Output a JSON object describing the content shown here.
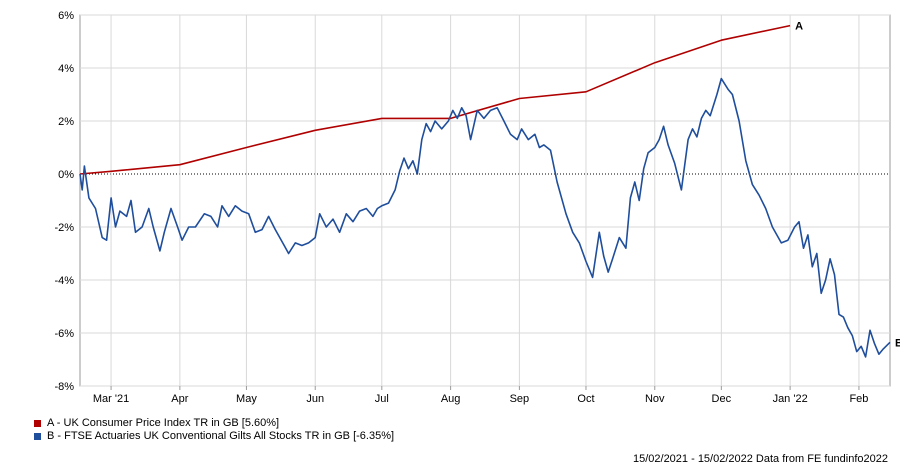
{
  "chart_data": {
    "type": "line",
    "y_ticks": [
      "6%",
      "4%",
      "2%",
      "0%",
      "-2%",
      "-4%",
      "-6%",
      "-8%"
    ],
    "ylim": [
      -8,
      6
    ],
    "x_ticks": [
      {
        "label": "Mar '21",
        "date": "2021-03-01"
      },
      {
        "label": "Apr",
        "date": "2021-04-01"
      },
      {
        "label": "May",
        "date": "2021-05-01"
      },
      {
        "label": "Jun",
        "date": "2021-06-01"
      },
      {
        "label": "Jul",
        "date": "2021-07-01"
      },
      {
        "label": "Aug",
        "date": "2021-08-01"
      },
      {
        "label": "Sep",
        "date": "2021-09-01"
      },
      {
        "label": "Oct",
        "date": "2021-10-01"
      },
      {
        "label": "Nov",
        "date": "2021-11-01"
      },
      {
        "label": "Dec",
        "date": "2021-12-01"
      },
      {
        "label": "Jan '22",
        "date": "2022-01-01"
      },
      {
        "label": "Feb",
        "date": "2022-02-01"
      }
    ],
    "xlim": [
      "2021-02-15",
      "2022-02-15"
    ],
    "grid": true,
    "zero_line": "dotted",
    "series": [
      {
        "name": "A - UK Consumer Price Index TR in GB [5.60%]",
        "end_label": "A",
        "color": "#b00000",
        "points": [
          [
            "2021-02-15",
            0.0
          ],
          [
            "2021-03-01",
            0.1
          ],
          [
            "2021-04-01",
            0.35
          ],
          [
            "2021-05-01",
            1.0
          ],
          [
            "2021-06-01",
            1.65
          ],
          [
            "2021-07-01",
            2.1
          ],
          [
            "2021-08-01",
            2.1
          ],
          [
            "2021-09-01",
            2.85
          ],
          [
            "2021-10-01",
            3.1
          ],
          [
            "2021-11-01",
            4.2
          ],
          [
            "2021-12-01",
            5.05
          ],
          [
            "2022-01-01",
            5.6
          ]
        ]
      },
      {
        "name": "B - FTSE Actuaries UK Conventional Gilts All Stocks TR in GB [-6.35%]",
        "end_label": "B",
        "color": "#1f4e9c",
        "points": [
          [
            "2021-02-15",
            0.0
          ],
          [
            "2021-02-16",
            -0.6
          ],
          [
            "2021-02-17",
            0.3
          ],
          [
            "2021-02-19",
            -0.9
          ],
          [
            "2021-02-22",
            -1.3
          ],
          [
            "2021-02-25",
            -2.4
          ],
          [
            "2021-02-27",
            -2.5
          ],
          [
            "2021-03-01",
            -0.9
          ],
          [
            "2021-03-03",
            -2.0
          ],
          [
            "2021-03-05",
            -1.4
          ],
          [
            "2021-03-08",
            -1.6
          ],
          [
            "2021-03-10",
            -1.0
          ],
          [
            "2021-03-12",
            -2.2
          ],
          [
            "2021-03-15",
            -2.0
          ],
          [
            "2021-03-18",
            -1.3
          ],
          [
            "2021-03-20",
            -2.0
          ],
          [
            "2021-03-23",
            -2.9
          ],
          [
            "2021-03-25",
            -2.2
          ],
          [
            "2021-03-28",
            -1.3
          ],
          [
            "2021-03-31",
            -2.0
          ],
          [
            "2021-04-02",
            -2.5
          ],
          [
            "2021-04-05",
            -2.0
          ],
          [
            "2021-04-08",
            -2.0
          ],
          [
            "2021-04-12",
            -1.5
          ],
          [
            "2021-04-15",
            -1.6
          ],
          [
            "2021-04-18",
            -2.0
          ],
          [
            "2021-04-20",
            -1.2
          ],
          [
            "2021-04-23",
            -1.6
          ],
          [
            "2021-04-26",
            -1.2
          ],
          [
            "2021-04-29",
            -1.4
          ],
          [
            "2021-05-02",
            -1.5
          ],
          [
            "2021-05-05",
            -2.2
          ],
          [
            "2021-05-08",
            -2.1
          ],
          [
            "2021-05-11",
            -1.6
          ],
          [
            "2021-05-14",
            -2.1
          ],
          [
            "2021-05-18",
            -2.7
          ],
          [
            "2021-05-20",
            -3.0
          ],
          [
            "2021-05-23",
            -2.6
          ],
          [
            "2021-05-26",
            -2.7
          ],
          [
            "2021-05-29",
            -2.6
          ],
          [
            "2021-06-01",
            -2.4
          ],
          [
            "2021-06-03",
            -1.5
          ],
          [
            "2021-06-06",
            -2.0
          ],
          [
            "2021-06-09",
            -1.7
          ],
          [
            "2021-06-12",
            -2.2
          ],
          [
            "2021-06-15",
            -1.5
          ],
          [
            "2021-06-18",
            -1.8
          ],
          [
            "2021-06-21",
            -1.4
          ],
          [
            "2021-06-24",
            -1.3
          ],
          [
            "2021-06-27",
            -1.6
          ],
          [
            "2021-06-29",
            -1.3
          ],
          [
            "2021-07-01",
            -1.2
          ],
          [
            "2021-07-04",
            -1.1
          ],
          [
            "2021-07-07",
            -0.6
          ],
          [
            "2021-07-09",
            0.1
          ],
          [
            "2021-07-11",
            0.6
          ],
          [
            "2021-07-13",
            0.2
          ],
          [
            "2021-07-15",
            0.5
          ],
          [
            "2021-07-17",
            0.0
          ],
          [
            "2021-07-19",
            1.3
          ],
          [
            "2021-07-21",
            1.9
          ],
          [
            "2021-07-23",
            1.6
          ],
          [
            "2021-07-25",
            2.0
          ],
          [
            "2021-07-28",
            1.7
          ],
          [
            "2021-07-31",
            2.0
          ],
          [
            "2021-08-02",
            2.4
          ],
          [
            "2021-08-04",
            2.1
          ],
          [
            "2021-08-06",
            2.5
          ],
          [
            "2021-08-08",
            2.2
          ],
          [
            "2021-08-10",
            1.3
          ],
          [
            "2021-08-13",
            2.4
          ],
          [
            "2021-08-16",
            2.1
          ],
          [
            "2021-08-19",
            2.4
          ],
          [
            "2021-08-22",
            2.5
          ],
          [
            "2021-08-25",
            2.0
          ],
          [
            "2021-08-28",
            1.5
          ],
          [
            "2021-08-31",
            1.3
          ],
          [
            "2021-09-02",
            1.7
          ],
          [
            "2021-09-05",
            1.3
          ],
          [
            "2021-09-08",
            1.5
          ],
          [
            "2021-09-10",
            1.0
          ],
          [
            "2021-09-12",
            1.1
          ],
          [
            "2021-09-15",
            0.9
          ],
          [
            "2021-09-18",
            -0.3
          ],
          [
            "2021-09-22",
            -1.5
          ],
          [
            "2021-09-25",
            -2.2
          ],
          [
            "2021-09-28",
            -2.6
          ],
          [
            "2021-10-01",
            -3.3
          ],
          [
            "2021-10-04",
            -3.9
          ],
          [
            "2021-10-07",
            -2.2
          ],
          [
            "2021-10-09",
            -3.1
          ],
          [
            "2021-10-11",
            -3.7
          ],
          [
            "2021-10-13",
            -3.2
          ],
          [
            "2021-10-16",
            -2.4
          ],
          [
            "2021-10-19",
            -2.8
          ],
          [
            "2021-10-21",
            -0.9
          ],
          [
            "2021-10-23",
            -0.3
          ],
          [
            "2021-10-25",
            -1.0
          ],
          [
            "2021-10-27",
            0.2
          ],
          [
            "2021-10-29",
            0.8
          ],
          [
            "2021-11-01",
            1.0
          ],
          [
            "2021-11-03",
            1.3
          ],
          [
            "2021-11-05",
            1.8
          ],
          [
            "2021-11-07",
            1.1
          ],
          [
            "2021-11-10",
            0.4
          ],
          [
            "2021-11-13",
            -0.6
          ],
          [
            "2021-11-16",
            1.3
          ],
          [
            "2021-11-18",
            1.7
          ],
          [
            "2021-11-20",
            1.4
          ],
          [
            "2021-11-22",
            2.1
          ],
          [
            "2021-11-24",
            2.4
          ],
          [
            "2021-11-26",
            2.2
          ],
          [
            "2021-11-29",
            3.0
          ],
          [
            "2021-12-01",
            3.6
          ],
          [
            "2021-12-04",
            3.2
          ],
          [
            "2021-12-06",
            3.0
          ],
          [
            "2021-12-09",
            2.0
          ],
          [
            "2021-12-12",
            0.5
          ],
          [
            "2021-12-15",
            -0.4
          ],
          [
            "2021-12-18",
            -0.8
          ],
          [
            "2021-12-21",
            -1.3
          ],
          [
            "2021-12-24",
            -2.0
          ],
          [
            "2021-12-28",
            -2.6
          ],
          [
            "2021-12-31",
            -2.5
          ],
          [
            "2022-01-03",
            -2.0
          ],
          [
            "2022-01-05",
            -1.8
          ],
          [
            "2022-01-07",
            -2.8
          ],
          [
            "2022-01-09",
            -2.3
          ],
          [
            "2022-01-11",
            -3.5
          ],
          [
            "2022-01-13",
            -3.0
          ],
          [
            "2022-01-15",
            -4.5
          ],
          [
            "2022-01-17",
            -4.0
          ],
          [
            "2022-01-19",
            -3.2
          ],
          [
            "2022-01-21",
            -3.8
          ],
          [
            "2022-01-23",
            -5.3
          ],
          [
            "2022-01-25",
            -5.4
          ],
          [
            "2022-01-27",
            -5.8
          ],
          [
            "2022-01-29",
            -6.1
          ],
          [
            "2022-01-31",
            -6.7
          ],
          [
            "2022-02-02",
            -6.5
          ],
          [
            "2022-02-04",
            -6.9
          ],
          [
            "2022-02-06",
            -5.9
          ],
          [
            "2022-02-08",
            -6.4
          ],
          [
            "2022-02-10",
            -6.8
          ],
          [
            "2022-02-12",
            -6.6
          ],
          [
            "2022-02-15",
            -6.35
          ]
        ]
      }
    ]
  },
  "footer": "15/02/2021 - 15/02/2022 Data from FE fundinfo2022"
}
